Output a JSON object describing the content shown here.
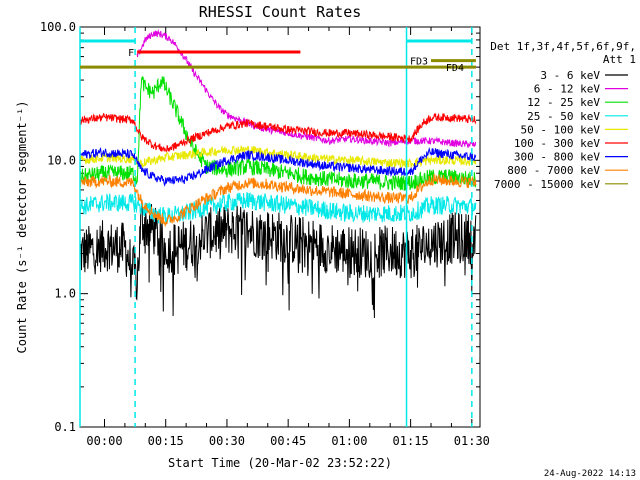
{
  "chart_data": {
    "type": "line",
    "title": "RHESSI Count Rates",
    "xlabel": "Start Time (20-Mar-02 23:52:22)",
    "ylabel": "Count Rate (s⁻¹ detector segment⁻¹)",
    "yscale": "log",
    "ylim": [
      0.1,
      100.0
    ],
    "xlim_min": [
      -6,
      92
    ],
    "x_ticks": [
      {
        "min": 0,
        "label": "00:00"
      },
      {
        "min": 15,
        "label": "00:15"
      },
      {
        "min": 30,
        "label": "00:30"
      },
      {
        "min": 45,
        "label": "00:45"
      },
      {
        "min": 60,
        "label": "01:00"
      },
      {
        "min": 75,
        "label": "01:15"
      },
      {
        "min": 90,
        "label": "01:30"
      }
    ],
    "y_ticks": [
      {
        "value": 0.1,
        "label": "0.1"
      },
      {
        "value": 1.0,
        "label": "1.0"
      },
      {
        "value": 10.0,
        "label": "10.0"
      },
      {
        "value": 100.0,
        "label": "100.0"
      }
    ],
    "legend_header": [
      "Det 1f,3f,4f,5f,6f,9f,",
      "Att 1"
    ],
    "legend_placement": "right",
    "grid": false,
    "series": [
      {
        "name": "3 - 6 keV",
        "color": "#000000",
        "points": [
          [
            -6,
            2.0
          ],
          [
            0,
            2.3
          ],
          [
            5,
            2.2
          ],
          [
            7,
            1.5
          ],
          [
            8,
            1.3
          ],
          [
            9,
            3.5
          ],
          [
            12,
            3.0
          ],
          [
            15,
            2.2
          ],
          [
            20,
            2.3
          ],
          [
            25,
            2.8
          ],
          [
            30,
            3.0
          ],
          [
            35,
            3.0
          ],
          [
            40,
            2.8
          ],
          [
            45,
            2.6
          ],
          [
            50,
            2.4
          ],
          [
            55,
            2.2
          ],
          [
            60,
            2.1
          ],
          [
            65,
            2.0
          ],
          [
            70,
            2.1
          ],
          [
            75,
            2.0
          ],
          [
            80,
            2.4
          ],
          [
            85,
            2.6
          ],
          [
            91,
            2.6
          ]
        ]
      },
      {
        "name": "6 - 12 keV",
        "color": "#e000e0",
        "points": [
          [
            8,
            60
          ],
          [
            10,
            80
          ],
          [
            12,
            90
          ],
          [
            14,
            88
          ],
          [
            16,
            82
          ],
          [
            18,
            70
          ],
          [
            20,
            57
          ],
          [
            22,
            45
          ],
          [
            24,
            37
          ],
          [
            26,
            30
          ],
          [
            28,
            25
          ],
          [
            30,
            22
          ],
          [
            35,
            19
          ],
          [
            40,
            17
          ],
          [
            45,
            16
          ],
          [
            50,
            15
          ],
          [
            55,
            14
          ],
          [
            60,
            14.5
          ],
          [
            65,
            14
          ],
          [
            70,
            13.5
          ],
          [
            75,
            14
          ],
          [
            80,
            14
          ],
          [
            85,
            13.5
          ],
          [
            91,
            13
          ]
        ]
      },
      {
        "name": "12 - 25 keV",
        "color": "#00e000",
        "points": [
          [
            -6,
            7.5
          ],
          [
            0,
            8
          ],
          [
            7,
            8
          ],
          [
            8,
            7
          ],
          [
            9,
            40
          ],
          [
            10,
            35
          ],
          [
            12,
            32
          ],
          [
            14,
            40
          ],
          [
            16,
            30
          ],
          [
            18,
            22
          ],
          [
            20,
            16
          ],
          [
            22,
            12
          ],
          [
            25,
            9
          ],
          [
            30,
            8.5
          ],
          [
            35,
            9
          ],
          [
            40,
            8.5
          ],
          [
            45,
            8
          ],
          [
            50,
            7.5
          ],
          [
            55,
            7.2
          ],
          [
            60,
            7
          ],
          [
            65,
            7
          ],
          [
            70,
            6.8
          ],
          [
            75,
            6.8
          ],
          [
            80,
            7.5
          ],
          [
            85,
            7.5
          ],
          [
            91,
            7.2
          ]
        ]
      },
      {
        "name": "25 - 50 keV",
        "color": "#00e8e8",
        "points": [
          [
            -6,
            4.5
          ],
          [
            0,
            4.8
          ],
          [
            7,
            4.8
          ],
          [
            9,
            4.5
          ],
          [
            12,
            4.0
          ],
          [
            15,
            3.8
          ],
          [
            20,
            4.0
          ],
          [
            25,
            4.5
          ],
          [
            30,
            4.8
          ],
          [
            35,
            5.0
          ],
          [
            40,
            4.8
          ],
          [
            45,
            4.6
          ],
          [
            50,
            4.4
          ],
          [
            55,
            4.2
          ],
          [
            60,
            4.0
          ],
          [
            65,
            4.0
          ],
          [
            70,
            4.0
          ],
          [
            75,
            4.0
          ],
          [
            80,
            4.6
          ],
          [
            85,
            4.6
          ],
          [
            91,
            4.5
          ]
        ]
      },
      {
        "name": "50 - 100 keV",
        "color": "#e8e800",
        "points": [
          [
            -6,
            10
          ],
          [
            0,
            10.5
          ],
          [
            7,
            10.2
          ],
          [
            9,
            9.5
          ],
          [
            12,
            10
          ],
          [
            15,
            10.5
          ],
          [
            20,
            11
          ],
          [
            25,
            11.5
          ],
          [
            30,
            12
          ],
          [
            35,
            12
          ],
          [
            40,
            11.5
          ],
          [
            45,
            11
          ],
          [
            50,
            10.5
          ],
          [
            55,
            10.2
          ],
          [
            60,
            10
          ],
          [
            65,
            9.8
          ],
          [
            70,
            9.6
          ],
          [
            75,
            9.5
          ],
          [
            80,
            10
          ],
          [
            85,
            10
          ],
          [
            91,
            9.8
          ]
        ]
      },
      {
        "name": "100 - 300 keV",
        "color": "#ff0000",
        "points": [
          [
            -6,
            20
          ],
          [
            0,
            21
          ],
          [
            7,
            20
          ],
          [
            9,
            15
          ],
          [
            12,
            13
          ],
          [
            15,
            12
          ],
          [
            18,
            13
          ],
          [
            20,
            14
          ],
          [
            25,
            16
          ],
          [
            30,
            18
          ],
          [
            35,
            19
          ],
          [
            40,
            18
          ],
          [
            45,
            17
          ],
          [
            50,
            16.5
          ],
          [
            55,
            16
          ],
          [
            60,
            16
          ],
          [
            65,
            15.5
          ],
          [
            70,
            15
          ],
          [
            75,
            14.5
          ],
          [
            78,
            19
          ],
          [
            80,
            21
          ],
          [
            85,
            21
          ],
          [
            91,
            20
          ]
        ]
      },
      {
        "name": "300 - 800 keV",
        "color": "#0000ff",
        "points": [
          [
            -6,
            11
          ],
          [
            0,
            11.5
          ],
          [
            7,
            11
          ],
          [
            9,
            8.5
          ],
          [
            12,
            7.5
          ],
          [
            15,
            7.0
          ],
          [
            20,
            7.2
          ],
          [
            25,
            8.5
          ],
          [
            30,
            10
          ],
          [
            35,
            11
          ],
          [
            40,
            10.5
          ],
          [
            45,
            10
          ],
          [
            50,
            9.5
          ],
          [
            55,
            9
          ],
          [
            60,
            8.8
          ],
          [
            65,
            8.5
          ],
          [
            70,
            8.3
          ],
          [
            75,
            8.2
          ],
          [
            78,
            10.5
          ],
          [
            80,
            11.5
          ],
          [
            85,
            11
          ],
          [
            91,
            10.5
          ]
        ]
      },
      {
        "name": "800 - 7000 keV",
        "color": "#ff8000",
        "points": [
          [
            -6,
            6.8
          ],
          [
            0,
            7.0
          ],
          [
            7,
            6.8
          ],
          [
            9,
            5.0
          ],
          [
            12,
            4.0
          ],
          [
            15,
            3.5
          ],
          [
            18,
            3.8
          ],
          [
            20,
            4.2
          ],
          [
            25,
            5.2
          ],
          [
            30,
            6.2
          ],
          [
            35,
            6.8
          ],
          [
            40,
            6.6
          ],
          [
            45,
            6.3
          ],
          [
            50,
            6.0
          ],
          [
            55,
            5.8
          ],
          [
            60,
            5.6
          ],
          [
            65,
            5.4
          ],
          [
            70,
            5.2
          ],
          [
            75,
            5.2
          ],
          [
            78,
            6.5
          ],
          [
            80,
            7.2
          ],
          [
            85,
            7.0
          ],
          [
            91,
            6.8
          ]
        ]
      },
      {
        "name": "7000 - 15000 keV",
        "color": "#8b8b00",
        "points": [
          [
            -6,
            50
          ],
          [
            91,
            50
          ]
        ]
      }
    ],
    "annotations": [
      {
        "label": "F",
        "color": "#ff0000",
        "x_range": [
          8,
          48
        ],
        "y": 65
      },
      {
        "label": "FD3",
        "color": "#8b8b00",
        "x_range": [
          80,
          91
        ],
        "y": 56
      },
      {
        "label": "FD4",
        "color": "#8b8b00",
        "x_range": [
          -6,
          91
        ],
        "y": 50
      }
    ],
    "attenuator_bars": {
      "color": "#00e8e8",
      "solid_lines_x": [
        -6,
        74
      ],
      "dashed_lines_x": [
        7.5,
        90
      ],
      "top_bars": [
        [
          -6,
          7.5
        ],
        [
          74,
          90
        ]
      ]
    },
    "footer_timestamp": "24-Aug-2022 14:13"
  }
}
